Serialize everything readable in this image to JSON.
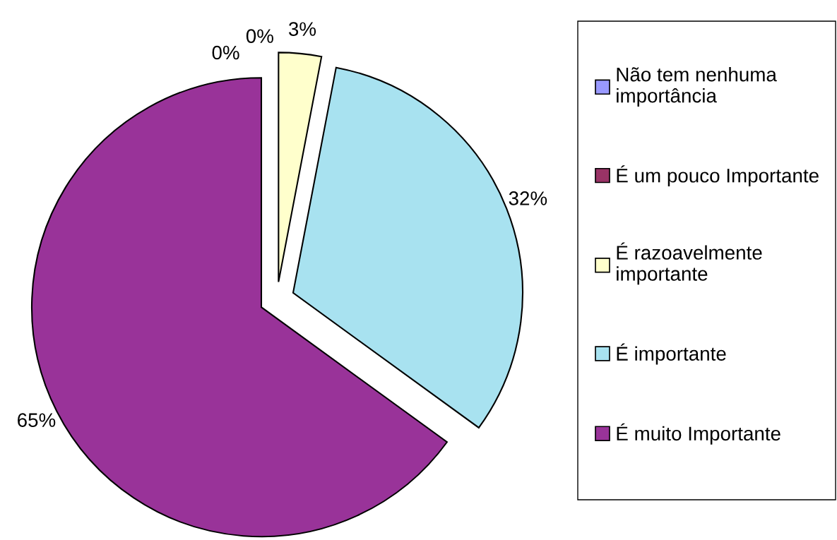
{
  "chart_data": {
    "type": "pie",
    "categories": [
      "Não tem nenhuma importância",
      "É um pouco Importante",
      "É razoavelmente importante",
      "É importante",
      "É muito Importante"
    ],
    "values": [
      0,
      0,
      3,
      32,
      65
    ],
    "colors": [
      "#9999ff",
      "#993366",
      "#ffffcc",
      "#a8e2f0",
      "#993399"
    ],
    "value_labels": [
      "0%",
      "0%",
      "3%",
      "32%",
      "65%"
    ],
    "legend": "right"
  }
}
